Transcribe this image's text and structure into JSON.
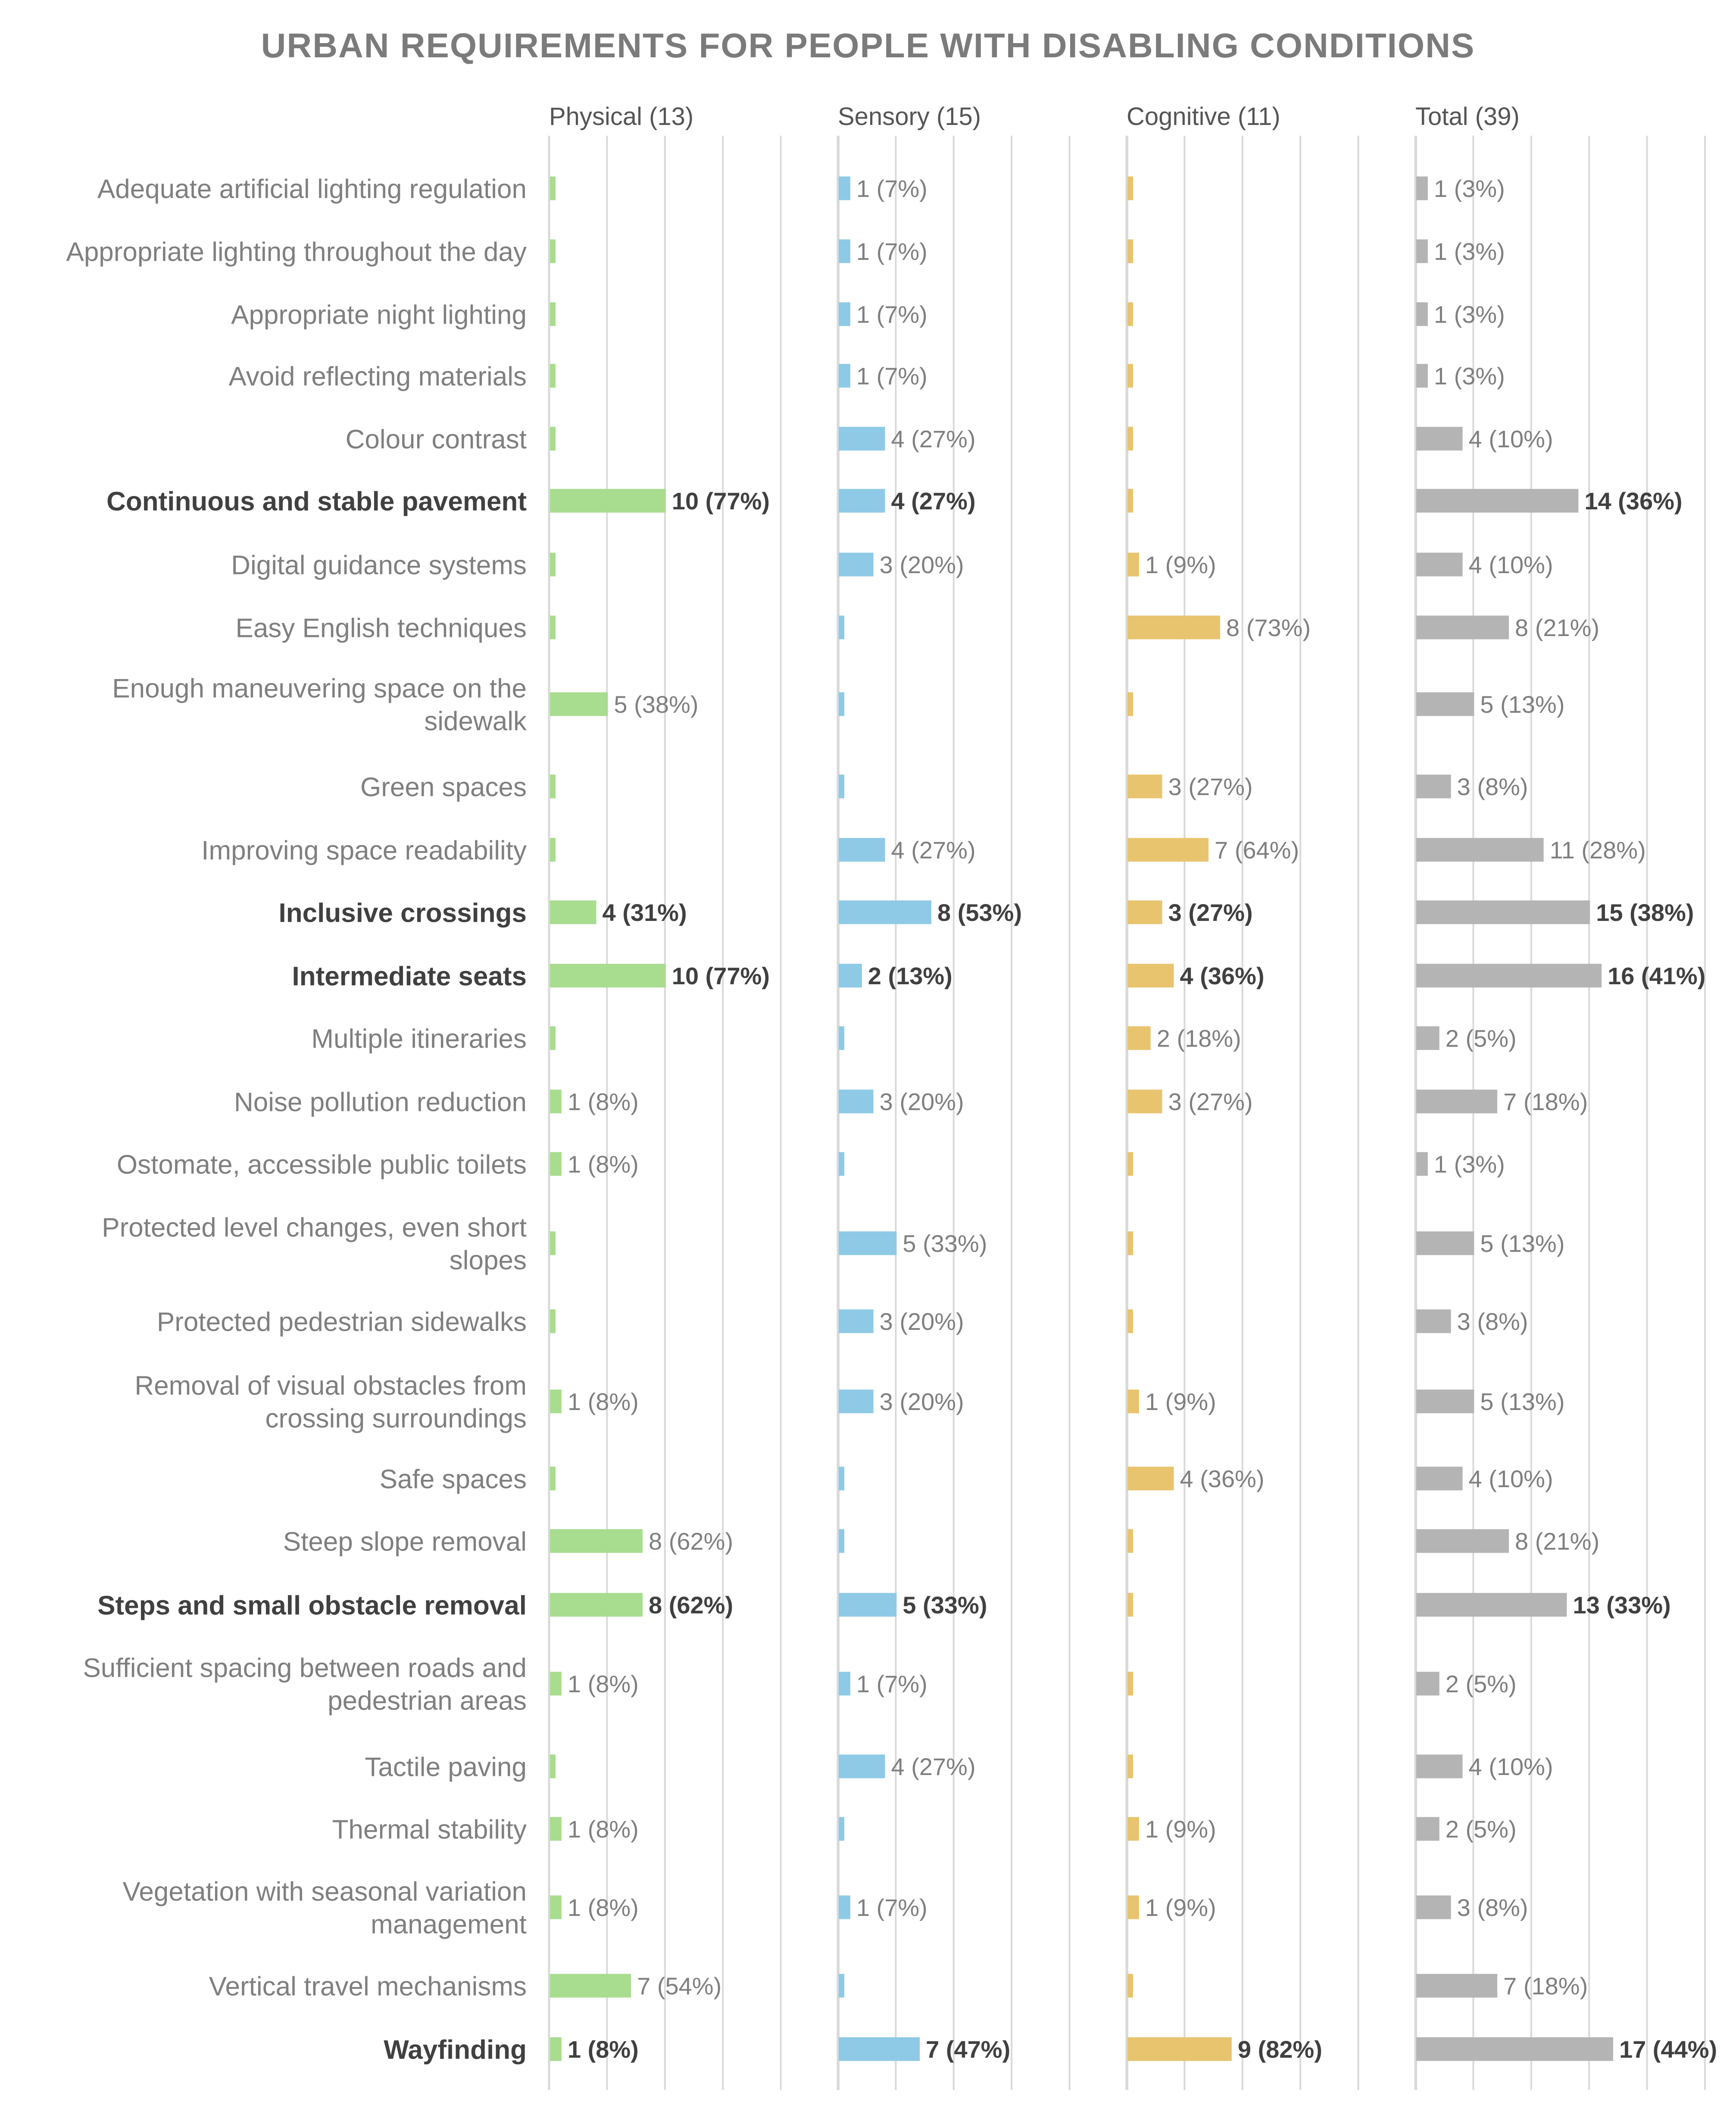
{
  "chart_data": {
    "type": "bar",
    "title": "URBAN REQUIREMENTS FOR PEOPLE WITH DISABLING CONDITIONS",
    "layout": "horizontal small multiples",
    "grid": true,
    "colors": {
      "Physical (13)": "#a8dc8f",
      "Sensory (15)": "#8ecae6",
      "Cognitive (11)": "#e8c46f",
      "Total (39)": "#b4b4b4",
      "grid": "#d9d9d9",
      "label": "#7f7f7f",
      "label_bold": "#404040"
    },
    "categories": [
      {
        "label": "Adequate artificial lighting regulation",
        "bold": false
      },
      {
        "label": "Appropriate lighting throughout the day",
        "bold": false
      },
      {
        "label": "Appropriate night lighting",
        "bold": false
      },
      {
        "label": "Avoid reflecting materials",
        "bold": false
      },
      {
        "label": "Colour contrast",
        "bold": false
      },
      {
        "label": "Continuous and stable pavement",
        "bold": true
      },
      {
        "label": "Digital guidance systems",
        "bold": false
      },
      {
        "label": "Easy English techniques",
        "bold": false
      },
      {
        "label": "Enough maneuvering space on the sidewalk",
        "bold": false,
        "lines": [
          "Enough maneuvering space on the",
          "sidewalk"
        ]
      },
      {
        "label": "Green spaces",
        "bold": false
      },
      {
        "label": "Improving space readability",
        "bold": false
      },
      {
        "label": "Inclusive crossings",
        "bold": true
      },
      {
        "label": "Intermediate seats",
        "bold": true
      },
      {
        "label": "Multiple itineraries",
        "bold": false
      },
      {
        "label": "Noise pollution reduction",
        "bold": false
      },
      {
        "label": "Ostomate, accessible public toilets",
        "bold": false
      },
      {
        "label": "Protected level changes, even short slopes",
        "bold": false,
        "lines": [
          "Protected level changes, even short",
          "slopes"
        ]
      },
      {
        "label": "Protected pedestrian sidewalks",
        "bold": false
      },
      {
        "label": "Removal of visual obstacles from crossing surroundings",
        "bold": false,
        "lines": [
          "Removal of visual obstacles from",
          "crossing surroundings"
        ]
      },
      {
        "label": "Safe spaces",
        "bold": false
      },
      {
        "label": "Steep slope removal",
        "bold": false
      },
      {
        "label": "Steps and small obstacle removal",
        "bold": true
      },
      {
        "label": "Sufficient spacing between roads and pedestrian areas",
        "bold": false,
        "lines": [
          "Sufficient spacing between roads and",
          "pedestrian areas"
        ]
      },
      {
        "label": "Tactile paving",
        "bold": false
      },
      {
        "label": "Thermal stability",
        "bold": false
      },
      {
        "label": "Vegetation with seasonal variation management",
        "bold": false,
        "lines": [
          "Vegetation with seasonal variation",
          "management"
        ]
      },
      {
        "label": "Vertical travel mechanisms",
        "bold": false
      },
      {
        "label": "Wayfinding",
        "bold": true
      }
    ],
    "series": [
      {
        "name": "Physical (13)",
        "xlim": [
          0,
          25
        ],
        "values": [
          0,
          0,
          0,
          0,
          0,
          10,
          0,
          0,
          5,
          0,
          0,
          4,
          10,
          0,
          1,
          1,
          0,
          0,
          1,
          0,
          8,
          8,
          1,
          0,
          1,
          1,
          7,
          1
        ],
        "data_labels": [
          "",
          "",
          "",
          "",
          "",
          "10 (77%)",
          "",
          "",
          "5 (38%)",
          "",
          "",
          "4 (31%)",
          "10 (77%)",
          "",
          "1 (8%)",
          "1 (8%)",
          "",
          "",
          "1 (8%)",
          "",
          "8 (62%)",
          "8 (62%)",
          "1 (8%)",
          "",
          "1 (8%)",
          "1 (8%)",
          "7 (54%)",
          "1 (8%)"
        ]
      },
      {
        "name": "Sensory (15)",
        "xlim": [
          0,
          25
        ],
        "values": [
          1,
          1,
          1,
          1,
          4,
          4,
          3,
          0,
          0,
          0,
          4,
          8,
          2,
          0,
          3,
          0,
          5,
          3,
          3,
          0,
          0,
          5,
          1,
          4,
          0,
          1,
          0,
          7
        ],
        "data_labels": [
          "1 (7%)",
          "1 (7%)",
          "1 (7%)",
          "1 (7%)",
          "4 (27%)",
          "4 (27%)",
          "3 (20%)",
          "",
          "",
          "",
          "4 (27%)",
          "8 (53%)",
          "2 (13%)",
          "",
          "3 (20%)",
          "",
          "5 (33%)",
          "3 (20%)",
          "3 (20%)",
          "",
          "",
          "5 (33%)",
          "1 (7%)",
          "4 (27%)",
          "",
          "1 (7%)",
          "",
          "7 (47%)"
        ]
      },
      {
        "name": "Cognitive (11)",
        "xlim": [
          0,
          25
        ],
        "values": [
          0,
          0,
          0,
          0,
          0,
          0,
          1,
          8,
          0,
          3,
          7,
          3,
          4,
          2,
          3,
          0,
          0,
          0,
          1,
          4,
          0,
          0,
          0,
          0,
          1,
          1,
          0,
          9
        ],
        "data_labels": [
          "",
          "",
          "",
          "",
          "",
          "",
          "1 (9%)",
          "8 (73%)",
          "",
          "3 (27%)",
          "7 (64%)",
          "3 (27%)",
          "4 (36%)",
          "2 (18%)",
          "3 (27%)",
          "",
          "",
          "",
          "1 (9%)",
          "4 (36%)",
          "",
          "",
          "",
          "",
          "1 (9%)",
          "1 (9%)",
          "",
          "9 (82%)"
        ]
      },
      {
        "name": "Total (39)",
        "xlim": [
          0,
          25
        ],
        "values": [
          1,
          1,
          1,
          1,
          4,
          14,
          4,
          8,
          5,
          3,
          11,
          15,
          16,
          2,
          7,
          1,
          5,
          3,
          5,
          4,
          8,
          13,
          2,
          4,
          2,
          3,
          7,
          17
        ],
        "data_labels": [
          "1 (3%)",
          "1 (3%)",
          "1 (3%)",
          "1 (3%)",
          "4 (10%)",
          "14 (36%)",
          "4 (10%)",
          "8 (21%)",
          "5 (13%)",
          "3 (8%)",
          "11 (28%)",
          "15 (38%)",
          "16 (41%)",
          "2 (5%)",
          "7 (18%)",
          "1 (3%)",
          "5 (13%)",
          "3 (8%)",
          "5 (13%)",
          "4 (10%)",
          "8 (21%)",
          "13 (33%)",
          "2 (5%)",
          "4 (10%)",
          "2 (5%)",
          "3 (8%)",
          "7 (18%)",
          "17 (44%)"
        ]
      }
    ]
  }
}
